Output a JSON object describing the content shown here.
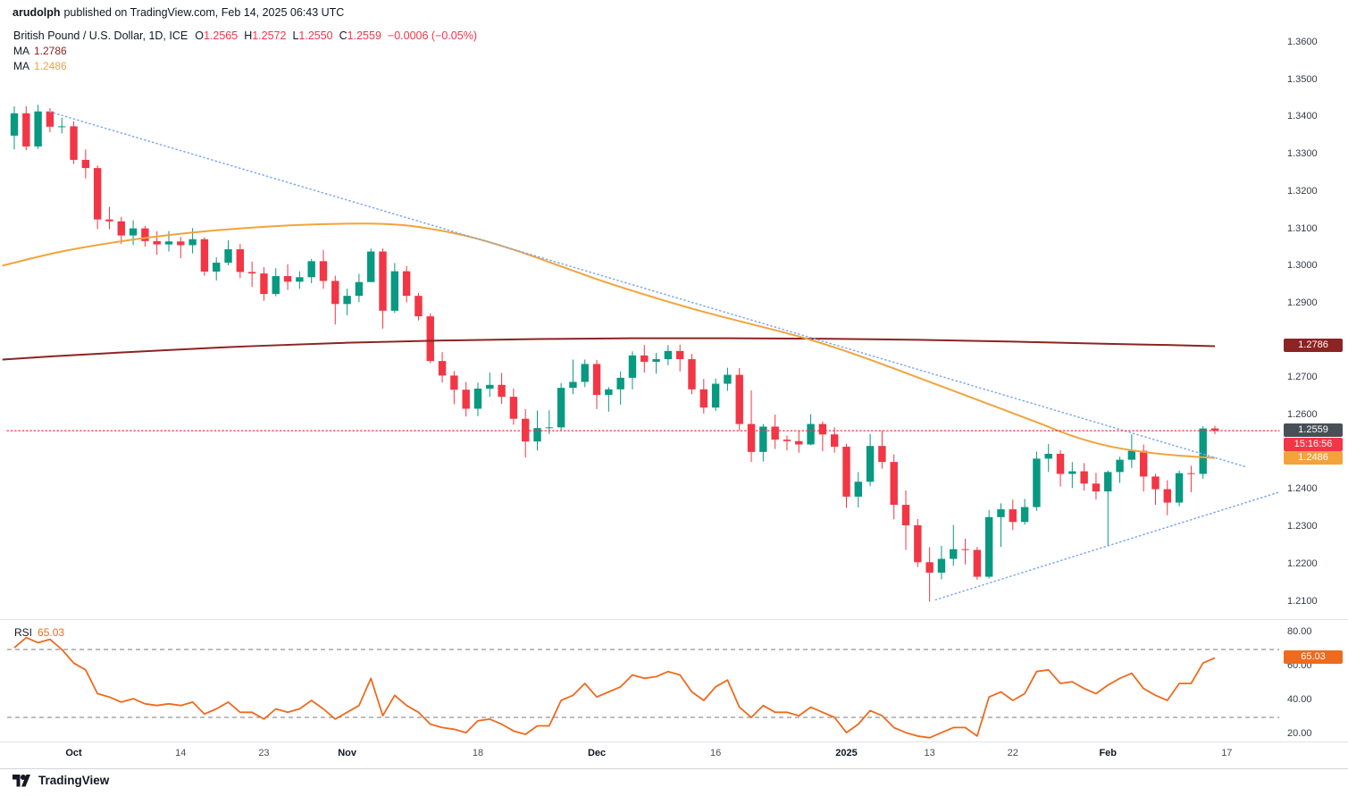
{
  "header": {
    "author": "arudolph",
    "published_text": "published on TradingView.com, Feb 14, 2025 06:43 UTC"
  },
  "legend": {
    "symbol": "British Pound / U.S. Dollar, 1D, ICE",
    "ohlc": {
      "o_label": "O",
      "open": "1.2565",
      "h_label": "H",
      "high": "1.2572",
      "l_label": "L",
      "low": "1.2550",
      "c_label": "C",
      "close": "1.2559",
      "change": "−0.0006 (−0.05%)"
    },
    "ma_rows": [
      {
        "label": "MA",
        "value": "1.2786",
        "color": "#8b2423"
      },
      {
        "label": "MA",
        "value": "1.2486",
        "color": "#f2a33c"
      }
    ]
  },
  "price_axis": {
    "labels": [
      {
        "text": "1.3600",
        "value": 1.36
      },
      {
        "text": "1.3500",
        "value": 1.35
      },
      {
        "text": "1.3400",
        "value": 1.34
      },
      {
        "text": "1.3300",
        "value": 1.33
      },
      {
        "text": "1.3200",
        "value": 1.32
      },
      {
        "text": "1.3100",
        "value": 1.31
      },
      {
        "text": "1.3000",
        "value": 1.3
      },
      {
        "text": "1.2900",
        "value": 1.29
      },
      {
        "text": "1.2700",
        "value": 1.27
      },
      {
        "text": "1.2600",
        "value": 1.26
      },
      {
        "text": "1.2400",
        "value": 1.24
      },
      {
        "text": "1.2300",
        "value": 1.23
      },
      {
        "text": "1.2200",
        "value": 1.22
      },
      {
        "text": "1.2100",
        "value": 1.21
      }
    ],
    "badges": [
      {
        "name": "ma-slow",
        "text": "1.2786",
        "price": 1.2786,
        "bg": "#8b2423"
      },
      {
        "name": "current",
        "text": "1.2559",
        "price": 1.2559,
        "bg": "#474f57"
      },
      {
        "name": "countdown",
        "text": "15:16:56",
        "price": 1.2559,
        "offset": 16,
        "bg": "#f23645"
      },
      {
        "name": "ma-fast",
        "text": "1.2486",
        "price": 1.2486,
        "bg": "#f2a33c"
      }
    ]
  },
  "time_axis": {
    "labels": [
      {
        "text": "Oct",
        "index": 5,
        "major": true
      },
      {
        "text": "14",
        "index": 14,
        "major": false
      },
      {
        "text": "23",
        "index": 21,
        "major": false
      },
      {
        "text": "Nov",
        "index": 28,
        "major": true
      },
      {
        "text": "18",
        "index": 39,
        "major": false
      },
      {
        "text": "Dec",
        "index": 49,
        "major": true
      },
      {
        "text": "16",
        "index": 59,
        "major": false
      },
      {
        "text": "2025",
        "index": 70,
        "major": true
      },
      {
        "text": "13",
        "index": 77,
        "major": false
      },
      {
        "text": "22",
        "index": 84,
        "major": false
      },
      {
        "text": "Feb",
        "index": 92,
        "major": true
      },
      {
        "text": "17",
        "index": 102,
        "major": false
      }
    ]
  },
  "rsi": {
    "label": "RSI",
    "value": "65.03",
    "value_num": 65.03,
    "color": "#ee6a1e",
    "badge_bg": "#ee6a1e",
    "axis_labels": [
      {
        "text": "80.00",
        "value": 80
      },
      {
        "text": "60.00",
        "value": 60
      },
      {
        "text": "40.00",
        "value": 40
      },
      {
        "text": "20.00",
        "value": 20
      }
    ],
    "bands": [
      70,
      30
    ]
  },
  "footer": {
    "brand": "TradingView"
  },
  "chart_data": {
    "type": "candlestick",
    "title": "British Pound / U.S. Dollar",
    "timeframe": "1D",
    "exchange": "ICE",
    "last_ohlc": {
      "open": 1.2565,
      "high": 1.2572,
      "low": 1.255,
      "close": 1.2559,
      "change": -0.0006,
      "change_pct": -0.05
    },
    "price_axis_range": [
      1.21,
      1.36
    ],
    "rsi_axis_range": [
      20,
      80
    ],
    "colors": {
      "up": "#089981",
      "down": "#f23645",
      "ma_slow": "#8b2423",
      "ma_fast": "#f2a33c",
      "rsi": "#ee6a1e",
      "trendline": "#7da7f4",
      "price_line": "#f23645"
    },
    "candles": [
      [
        1.3351,
        1.343,
        1.3314,
        1.3411
      ],
      [
        1.3411,
        1.343,
        1.3312,
        1.3322
      ],
      [
        1.3322,
        1.3434,
        1.3315,
        1.3416
      ],
      [
        1.3416,
        1.3425,
        1.336,
        1.3375
      ],
      [
        1.3375,
        1.3399,
        1.3357,
        1.3376
      ],
      [
        1.3376,
        1.3389,
        1.3275,
        1.3286
      ],
      [
        1.3286,
        1.3314,
        1.3236,
        1.3264
      ],
      [
        1.3264,
        1.3271,
        1.31,
        1.3126
      ],
      [
        1.3126,
        1.316,
        1.31,
        1.3121
      ],
      [
        1.3121,
        1.3133,
        1.306,
        1.3083
      ],
      [
        1.3083,
        1.3124,
        1.3057,
        1.3102
      ],
      [
        1.3102,
        1.3109,
        1.3053,
        1.3068
      ],
      [
        1.3068,
        1.3094,
        1.3031,
        1.3059
      ],
      [
        1.3059,
        1.3095,
        1.304,
        1.3067
      ],
      [
        1.3067,
        1.3079,
        1.3022,
        1.3057
      ],
      [
        1.3057,
        1.3103,
        1.3035,
        1.3073
      ],
      [
        1.3073,
        1.3078,
        1.2975,
        1.2986
      ],
      [
        1.2986,
        1.3024,
        1.2962,
        1.301
      ],
      [
        1.301,
        1.307,
        1.3003,
        1.3046
      ],
      [
        1.3046,
        1.306,
        1.2968,
        1.2985
      ],
      [
        1.2985,
        1.3013,
        1.2945,
        1.2981
      ],
      [
        1.2981,
        1.2998,
        1.2908,
        1.2926
      ],
      [
        1.2926,
        1.2995,
        1.292,
        1.2974
      ],
      [
        1.2974,
        1.3006,
        1.2937,
        1.2959
      ],
      [
        1.2959,
        1.2987,
        1.294,
        1.2971
      ],
      [
        1.2971,
        1.302,
        1.2955,
        1.3014
      ],
      [
        1.3014,
        1.3044,
        1.294,
        1.2961
      ],
      [
        1.2961,
        1.2975,
        1.2844,
        1.2899
      ],
      [
        1.2899,
        1.294,
        1.2869,
        1.2921
      ],
      [
        1.2921,
        1.298,
        1.2904,
        1.2958
      ],
      [
        1.2958,
        1.3048,
        1.2958,
        1.304
      ],
      [
        1.304,
        1.3048,
        1.2833,
        1.2881
      ],
      [
        1.2881,
        1.3009,
        1.2875,
        1.2987
      ],
      [
        1.2987,
        1.3001,
        1.2903,
        1.2921
      ],
      [
        1.2921,
        1.2929,
        1.2855,
        1.2866
      ],
      [
        1.2866,
        1.2874,
        1.274,
        1.2746
      ],
      [
        1.2746,
        1.277,
        1.2688,
        1.2707
      ],
      [
        1.2707,
        1.2719,
        1.263,
        1.2669
      ],
      [
        1.2669,
        1.269,
        1.2597,
        1.2618
      ],
      [
        1.2618,
        1.2688,
        1.2598,
        1.2672
      ],
      [
        1.2672,
        1.2715,
        1.265,
        1.2682
      ],
      [
        1.2682,
        1.2714,
        1.2631,
        1.265
      ],
      [
        1.265,
        1.2672,
        1.2575,
        1.2591
      ],
      [
        1.2591,
        1.2617,
        1.2487,
        1.253
      ],
      [
        1.253,
        1.2613,
        1.2506,
        1.2566
      ],
      [
        1.2566,
        1.2614,
        1.255,
        1.2568
      ],
      [
        1.2568,
        1.2687,
        1.256,
        1.2674
      ],
      [
        1.2674,
        1.275,
        1.2657,
        1.269
      ],
      [
        1.269,
        1.275,
        1.2676,
        1.2738
      ],
      [
        1.2738,
        1.2749,
        1.2617,
        1.2655
      ],
      [
        1.2655,
        1.2676,
        1.261,
        1.267
      ],
      [
        1.267,
        1.2718,
        1.2629,
        1.2701
      ],
      [
        1.2701,
        1.2772,
        1.267,
        1.2761
      ],
      [
        1.2761,
        1.2789,
        1.2715,
        1.2744
      ],
      [
        1.2744,
        1.2768,
        1.2712,
        1.2751
      ],
      [
        1.2751,
        1.2789,
        1.2735,
        1.2773
      ],
      [
        1.2773,
        1.279,
        1.2718,
        1.2751
      ],
      [
        1.2751,
        1.2765,
        1.2657,
        1.267
      ],
      [
        1.267,
        1.2698,
        1.2605,
        1.2621
      ],
      [
        1.2621,
        1.2699,
        1.2612,
        1.2685
      ],
      [
        1.2685,
        1.2728,
        1.2666,
        1.2709
      ],
      [
        1.2709,
        1.2727,
        1.256,
        1.2577
      ],
      [
        1.2577,
        1.2667,
        1.2475,
        1.2502
      ],
      [
        1.2502,
        1.2577,
        1.2476,
        1.257
      ],
      [
        1.257,
        1.2602,
        1.251,
        1.2535
      ],
      [
        1.2535,
        1.2546,
        1.2506,
        1.2531
      ],
      [
        1.2531,
        1.256,
        1.25,
        1.2522
      ],
      [
        1.2522,
        1.2603,
        1.252,
        1.2577
      ],
      [
        1.2577,
        1.2584,
        1.2504,
        1.2549
      ],
      [
        1.2549,
        1.2568,
        1.25,
        1.2516
      ],
      [
        1.2516,
        1.2524,
        1.2352,
        1.2382
      ],
      [
        1.2382,
        1.2448,
        1.2353,
        1.2422
      ],
      [
        1.2422,
        1.255,
        1.241,
        1.2518
      ],
      [
        1.2518,
        1.2559,
        1.2457,
        1.2475
      ],
      [
        1.2475,
        1.2495,
        1.2321,
        1.236
      ],
      [
        1.236,
        1.2399,
        1.2239,
        1.2305
      ],
      [
        1.2305,
        1.2322,
        1.2193,
        1.2206
      ],
      [
        1.2206,
        1.2246,
        1.21,
        1.2178
      ],
      [
        1.2178,
        1.225,
        1.216,
        1.2215
      ],
      [
        1.2215,
        1.2306,
        1.2196,
        1.2241
      ],
      [
        1.2241,
        1.2269,
        1.22,
        1.2239
      ],
      [
        1.2239,
        1.2247,
        1.2159,
        1.2167
      ],
      [
        1.2167,
        1.2346,
        1.2162,
        1.2327
      ],
      [
        1.2327,
        1.2364,
        1.2247,
        1.2348
      ],
      [
        1.2348,
        1.2374,
        1.2292,
        1.2314
      ],
      [
        1.2314,
        1.2376,
        1.2307,
        1.2354
      ],
      [
        1.2354,
        1.2503,
        1.2344,
        1.2484
      ],
      [
        1.2484,
        1.2523,
        1.2448,
        1.2497
      ],
      [
        1.2497,
        1.2507,
        1.2409,
        1.2443
      ],
      [
        1.2443,
        1.2475,
        1.2405,
        1.245
      ],
      [
        1.245,
        1.2472,
        1.2398,
        1.2417
      ],
      [
        1.2417,
        1.2446,
        1.2374,
        1.2396
      ],
      [
        1.2396,
        1.2452,
        1.2249,
        1.2448
      ],
      [
        1.2448,
        1.2489,
        1.2419,
        1.2481
      ],
      [
        1.2481,
        1.2549,
        1.2459,
        1.2505
      ],
      [
        1.2505,
        1.2522,
        1.2396,
        1.2436
      ],
      [
        1.2436,
        1.2443,
        1.236,
        1.2402
      ],
      [
        1.2402,
        1.2426,
        1.2332,
        1.2366
      ],
      [
        1.2366,
        1.2452,
        1.2356,
        1.2445
      ],
      [
        1.2445,
        1.2465,
        1.2394,
        1.2443
      ],
      [
        1.2443,
        1.2571,
        1.243,
        1.2565
      ],
      [
        1.2565,
        1.2572,
        1.255,
        1.2559
      ]
    ],
    "ma_slow_points": [
      [
        -1,
        1.275
      ],
      [
        5,
        1.2762
      ],
      [
        12,
        1.2774
      ],
      [
        20,
        1.2786
      ],
      [
        28,
        1.2795
      ],
      [
        36,
        1.2801
      ],
      [
        44,
        1.2805
      ],
      [
        52,
        1.2807
      ],
      [
        60,
        1.2807
      ],
      [
        68,
        1.2806
      ],
      [
        76,
        1.2803
      ],
      [
        84,
        1.2798
      ],
      [
        92,
        1.2792
      ],
      [
        97,
        1.2789
      ],
      [
        101,
        1.2786
      ]
    ],
    "ma_fast_points": [
      [
        -1,
        1.3002
      ],
      [
        4,
        1.304
      ],
      [
        10,
        1.3072
      ],
      [
        16,
        1.3094
      ],
      [
        22,
        1.3108
      ],
      [
        27,
        1.3114
      ],
      [
        31,
        1.3114
      ],
      [
        34,
        1.3106
      ],
      [
        38,
        1.3082
      ],
      [
        42,
        1.3045
      ],
      [
        46,
        1.3
      ],
      [
        50,
        1.2955
      ],
      [
        54,
        1.2915
      ],
      [
        58,
        1.2878
      ],
      [
        62,
        1.2845
      ],
      [
        66,
        1.2812
      ],
      [
        70,
        1.2772
      ],
      [
        74,
        1.2726
      ],
      [
        78,
        1.2678
      ],
      [
        82,
        1.263
      ],
      [
        86,
        1.2582
      ],
      [
        89,
        1.2545
      ],
      [
        92,
        1.2518
      ],
      [
        95,
        1.2502
      ],
      [
        98,
        1.2492
      ],
      [
        101,
        1.2486
      ]
    ],
    "trendlines": [
      {
        "from_index": 3,
        "from_price": 1.3415,
        "to_index": 103.5,
        "to_price": 1.2463
      },
      {
        "from_index": 77.5,
        "from_price": 1.2105,
        "to_index": 106.5,
        "to_price": 1.2395
      }
    ],
    "current_price_line": 1.2559,
    "rsi_values": [
      71,
      77,
      74,
      76,
      70,
      62,
      58,
      44,
      42,
      39,
      41,
      38,
      37,
      38,
      37,
      39,
      32,
      35,
      39,
      33,
      33,
      29,
      35,
      33,
      35,
      40,
      35,
      29,
      33,
      37,
      53,
      31,
      43,
      37,
      33,
      26,
      24,
      23,
      21,
      28,
      29,
      26,
      22,
      20,
      25,
      25,
      40,
      43,
      50,
      42,
      45,
      48,
      55,
      53,
      54,
      57,
      55,
      45,
      40,
      48,
      52,
      36,
      30,
      37,
      33,
      33,
      31,
      36,
      33,
      30,
      21,
      26,
      34,
      31,
      24,
      21,
      19,
      18,
      21,
      24,
      24,
      19,
      42,
      45,
      40,
      44,
      57,
      58,
      50,
      51,
      47,
      44,
      49,
      53,
      56,
      47,
      43,
      40,
      50,
      50,
      62,
      65.03
    ]
  }
}
